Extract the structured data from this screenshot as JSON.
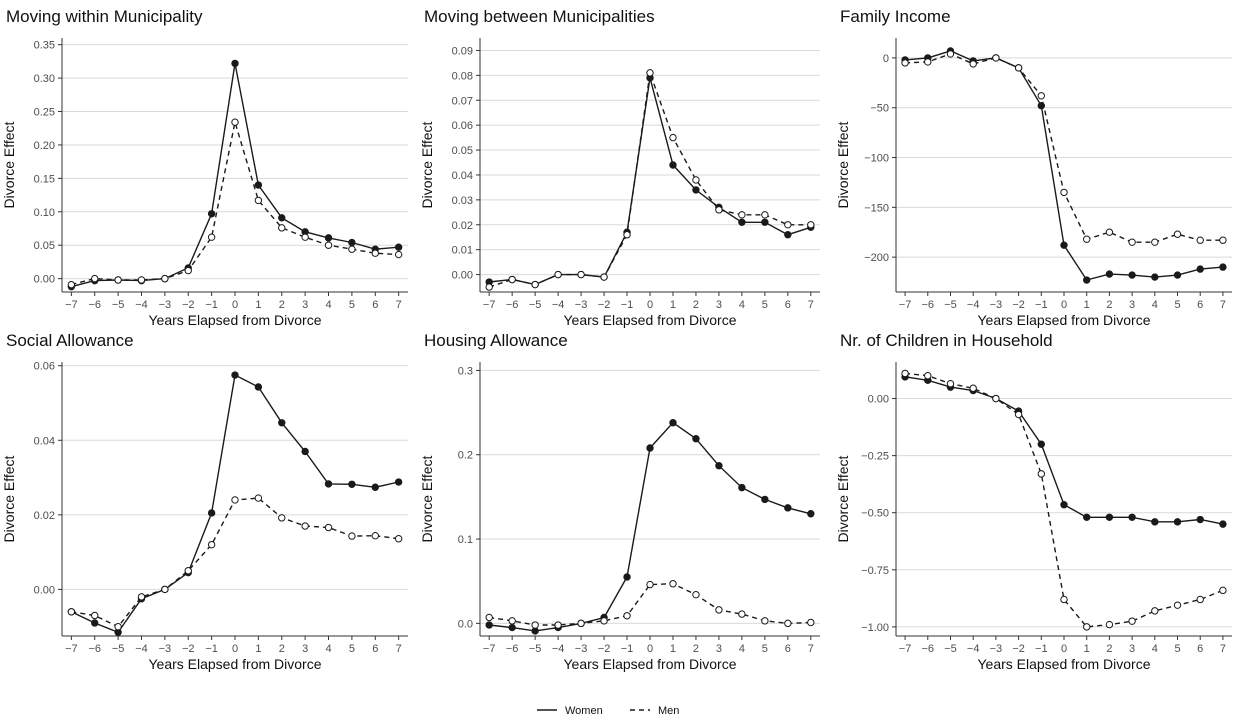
{
  "legend": {
    "position": "bottom",
    "women_label": "Women",
    "men_label": "Men"
  },
  "colors": {
    "line": "#1a1a1a",
    "grid": "#d9d9d9",
    "axis": "#333333"
  },
  "chart_data": [
    {
      "type": "line",
      "title": "Moving within Municipality",
      "xlabel": "Years Elapsed from Divorce",
      "ylabel": "Divorce Effect",
      "x": [
        -7,
        -6,
        -5,
        -4,
        -3,
        -2,
        -1,
        0,
        1,
        2,
        3,
        4,
        5,
        6,
        7
      ],
      "xlim": [
        -7.4,
        7.4
      ],
      "ylim": [
        -0.02,
        0.36
      ],
      "yticks": [
        0.0,
        0.05,
        0.1,
        0.15,
        0.2,
        0.25,
        0.3,
        0.35
      ],
      "yticklabels": [
        "0.00",
        "0.05",
        "0.10",
        "0.15",
        "0.20",
        "0.25",
        "0.30",
        "0.35"
      ],
      "grid": true,
      "series": [
        {
          "name": "Women",
          "style": "solid",
          "marker": "filled",
          "values": [
            -0.012,
            -0.003,
            -0.002,
            -0.003,
            0.0,
            0.016,
            0.097,
            0.322,
            0.14,
            0.091,
            0.07,
            0.061,
            0.054,
            0.044,
            0.047
          ]
        },
        {
          "name": "Men",
          "style": "dashed",
          "marker": "open",
          "values": [
            -0.009,
            0.0,
            -0.002,
            -0.002,
            0.0,
            0.012,
            0.062,
            0.234,
            0.117,
            0.076,
            0.062,
            0.05,
            0.044,
            0.038,
            0.036
          ]
        }
      ]
    },
    {
      "type": "line",
      "title": "Moving between Municipalities",
      "xlabel": "Years Elapsed from Divorce",
      "ylabel": "Divorce Effect",
      "x": [
        -7,
        -6,
        -5,
        -4,
        -3,
        -2,
        -1,
        0,
        1,
        2,
        3,
        4,
        5,
        6,
        7
      ],
      "xlim": [
        -7.4,
        7.4
      ],
      "ylim": [
        -0.007,
        0.095
      ],
      "yticks": [
        0.0,
        0.01,
        0.02,
        0.03,
        0.04,
        0.05,
        0.06,
        0.07,
        0.08,
        0.09
      ],
      "yticklabels": [
        "0.00",
        "0.01",
        "0.02",
        "0.03",
        "0.04",
        "0.05",
        "0.06",
        "0.07",
        "0.08",
        "0.09"
      ],
      "grid": true,
      "series": [
        {
          "name": "Women",
          "style": "solid",
          "marker": "filled",
          "values": [
            -0.003,
            -0.002,
            -0.004,
            0.0,
            0.0,
            -0.001,
            0.017,
            0.079,
            0.044,
            0.034,
            0.027,
            0.021,
            0.021,
            0.016,
            0.019
          ]
        },
        {
          "name": "Men",
          "style": "dashed",
          "marker": "open",
          "values": [
            -0.005,
            -0.002,
            -0.004,
            0.0,
            0.0,
            -0.001,
            0.016,
            0.081,
            0.055,
            0.038,
            0.026,
            0.024,
            0.024,
            0.02,
            0.02
          ]
        }
      ]
    },
    {
      "type": "line",
      "title": "Family Income",
      "xlabel": "Years Elapsed from Divorce",
      "ylabel": "Divorce Effect",
      "x": [
        -7,
        -6,
        -5,
        -4,
        -3,
        -2,
        -1,
        0,
        1,
        2,
        3,
        4,
        5,
        6,
        7
      ],
      "xlim": [
        -7.4,
        7.4
      ],
      "ylim": [
        -235,
        20
      ],
      "yticks": [
        0,
        -50,
        -100,
        -150,
        -200
      ],
      "yticklabels": [
        "0",
        "−50",
        "−100",
        "−150",
        "−200"
      ],
      "grid": true,
      "series": [
        {
          "name": "Women",
          "style": "solid",
          "marker": "filled",
          "values": [
            -2,
            0,
            7,
            -3,
            0,
            -10,
            -48,
            -188,
            -223,
            -217,
            -218,
            -220,
            -218,
            -212,
            -210
          ]
        },
        {
          "name": "Men",
          "style": "dashed",
          "marker": "open",
          "values": [
            -5,
            -4,
            4,
            -6,
            0,
            -10,
            -38,
            -135,
            -182,
            -175,
            -185,
            -185,
            -177,
            -183,
            -183
          ]
        }
      ]
    },
    {
      "type": "line",
      "title": "Social Allowance",
      "xlabel": "Years Elapsed from Divorce",
      "ylabel": "Divorce Effect",
      "x": [
        -7,
        -6,
        -5,
        -4,
        -3,
        -2,
        -1,
        0,
        1,
        2,
        3,
        4,
        5,
        6,
        7
      ],
      "xlim": [
        -7.4,
        7.4
      ],
      "ylim": [
        -0.0125,
        0.061
      ],
      "yticks": [
        0.0,
        0.02,
        0.04,
        0.06
      ],
      "yticklabels": [
        "0.00",
        "0.02",
        "0.04",
        "0.06"
      ],
      "grid": true,
      "series": [
        {
          "name": "Women",
          "style": "solid",
          "marker": "filled",
          "values": [
            -0.006,
            -0.009,
            -0.0115,
            -0.0025,
            0.0,
            0.0045,
            0.0205,
            0.0575,
            0.0543,
            0.0447,
            0.037,
            0.0283,
            0.0282,
            0.0274,
            0.0288
          ]
        },
        {
          "name": "Men",
          "style": "dashed",
          "marker": "open",
          "values": [
            -0.006,
            -0.007,
            -0.01,
            -0.002,
            0.0,
            0.005,
            0.012,
            0.024,
            0.0245,
            0.0192,
            0.017,
            0.0166,
            0.0143,
            0.0144,
            0.0136
          ]
        }
      ]
    },
    {
      "type": "line",
      "title": "Housing Allowance",
      "xlabel": "Years Elapsed from Divorce",
      "ylabel": "Divorce Effect",
      "x": [
        -7,
        -6,
        -5,
        -4,
        -3,
        -2,
        -1,
        0,
        1,
        2,
        3,
        4,
        5,
        6,
        7
      ],
      "xlim": [
        -7.4,
        7.4
      ],
      "ylim": [
        -0.015,
        0.31
      ],
      "yticks": [
        0.0,
        0.1,
        0.2,
        0.3
      ],
      "yticklabels": [
        "0.0",
        "0.1",
        "0.2",
        "0.3"
      ],
      "grid": true,
      "series": [
        {
          "name": "Women",
          "style": "solid",
          "marker": "filled",
          "values": [
            -0.002,
            -0.005,
            -0.009,
            -0.005,
            0.0,
            0.007,
            0.055,
            0.208,
            0.238,
            0.219,
            0.187,
            0.161,
            0.147,
            0.137,
            0.13
          ]
        },
        {
          "name": "Men",
          "style": "dashed",
          "marker": "open",
          "values": [
            0.007,
            0.003,
            -0.002,
            -0.002,
            0.0,
            0.003,
            0.009,
            0.046,
            0.047,
            0.034,
            0.016,
            0.011,
            0.003,
            0.0,
            0.001
          ]
        }
      ]
    },
    {
      "type": "line",
      "title": "Nr. of Children in Household",
      "xlabel": "Years Elapsed from Divorce",
      "ylabel": "Divorce Effect",
      "x": [
        -7,
        -6,
        -5,
        -4,
        -3,
        -2,
        -1,
        0,
        1,
        2,
        3,
        4,
        5,
        6,
        7
      ],
      "xlim": [
        -7.4,
        7.4
      ],
      "ylim": [
        -1.04,
        0.16
      ],
      "yticks": [
        0.0,
        -0.25,
        -0.5,
        -0.75,
        -1.0
      ],
      "yticklabels": [
        "0.00",
        "−0.25",
        "−0.50",
        "−0.75",
        "−1.00"
      ],
      "grid": true,
      "series": [
        {
          "name": "Women",
          "style": "solid",
          "marker": "filled",
          "values": [
            0.095,
            0.08,
            0.05,
            0.035,
            0.0,
            -0.055,
            -0.2,
            -0.465,
            -0.52,
            -0.52,
            -0.52,
            -0.54,
            -0.54,
            -0.53,
            -0.55
          ]
        },
        {
          "name": "Men",
          "style": "dashed",
          "marker": "open",
          "values": [
            0.11,
            0.1,
            0.065,
            0.045,
            0.0,
            -0.07,
            -0.33,
            -0.88,
            -1.0,
            -0.99,
            -0.975,
            -0.93,
            -0.905,
            -0.88,
            -0.84
          ]
        }
      ]
    }
  ]
}
